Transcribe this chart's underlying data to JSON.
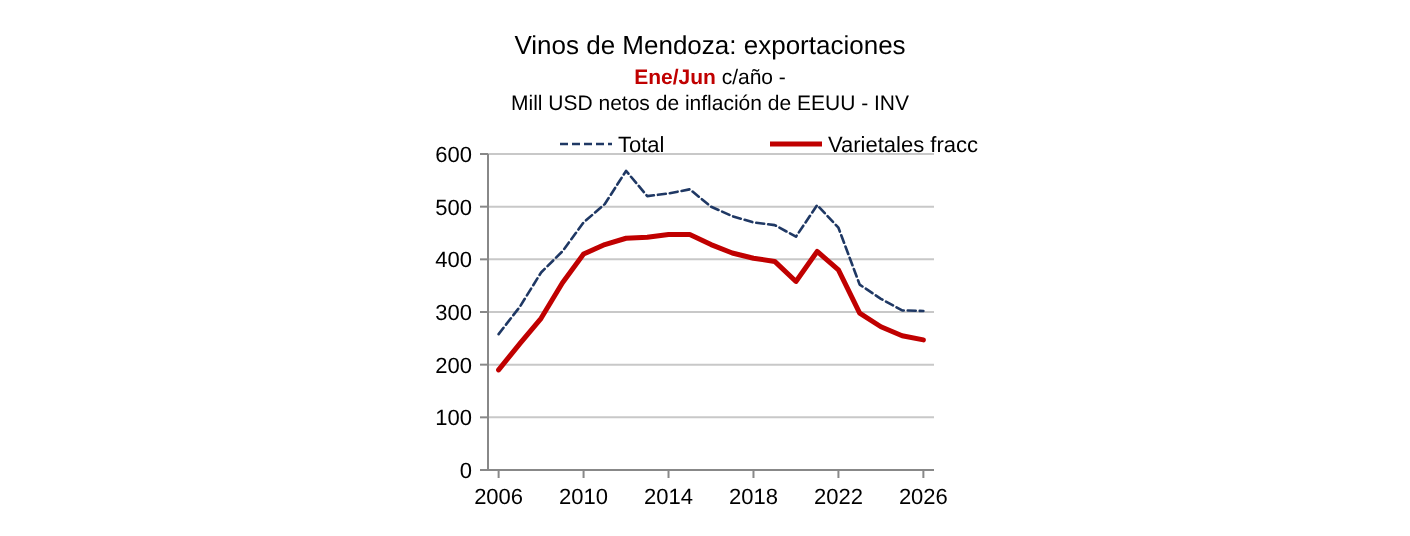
{
  "chart_data": {
    "type": "line",
    "title": "Vinos de Mendoza:  exportaciones",
    "subtitle": "Ene/Jun c/año -\nMill USD netos de inflación de EEUU - INV",
    "x": [
      2006,
      2007,
      2008,
      2009,
      2010,
      2011,
      2012,
      2013,
      2014,
      2015,
      2016,
      2017,
      2018,
      2019,
      2020,
      2021,
      2022,
      2023,
      2024,
      2025,
      2026
    ],
    "series": [
      {
        "name": "Total",
        "color": "#1f3864",
        "line_style": "dashed",
        "values": [
          258,
          310,
          375,
          415,
          470,
          505,
          568,
          520,
          525,
          533,
          500,
          482,
          470,
          465,
          443,
          503,
          460,
          352,
          325,
          303,
          302
        ]
      },
      {
        "name": "Varietales fracc",
        "color": "#c00000",
        "line_style": "solid",
        "values": [
          190,
          240,
          288,
          355,
          410,
          428,
          440,
          442,
          447,
          447,
          428,
          412,
          402,
          396,
          358,
          415,
          380,
          298,
          272,
          255,
          247
        ]
      }
    ],
    "xlim": [
      2005.5,
      2026.5
    ],
    "xticks": [
      2006,
      2010,
      2014,
      2018,
      2022,
      2026
    ],
    "ylim": [
      0,
      600
    ],
    "yticks": [
      0,
      100,
      200,
      300,
      400,
      500,
      600
    ],
    "grid": "y",
    "legend": "top",
    "marker": "none"
  }
}
